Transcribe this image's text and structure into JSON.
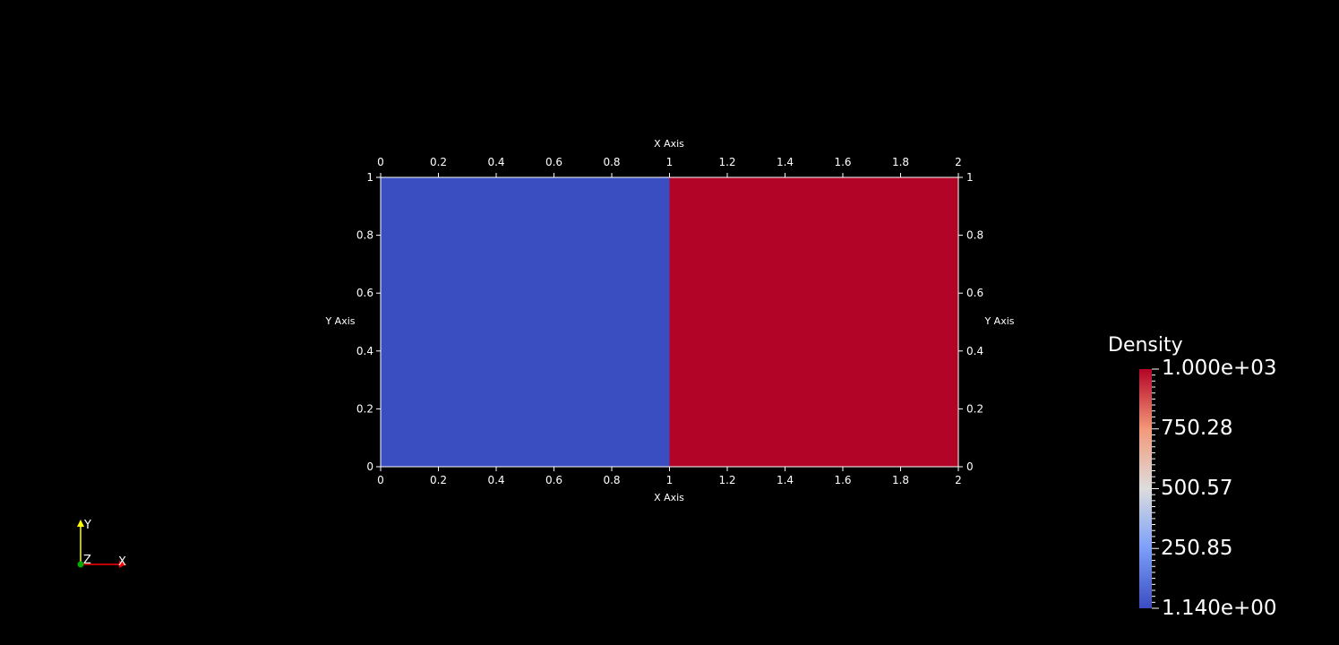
{
  "viewport": {
    "background": "#000000",
    "foreground": "#ffffff"
  },
  "plot": {
    "x_axis_title_top": "X Axis",
    "x_axis_title_bottom": "X Axis",
    "y_axis_title_left": "Y Axis",
    "y_axis_title_right": "Y Axis",
    "x_range": [
      0,
      2
    ],
    "y_range": [
      0,
      1
    ],
    "x_ticks": [
      "0",
      "0.2",
      "0.4",
      "0.6",
      "0.8",
      "1",
      "1.2",
      "1.4",
      "1.6",
      "1.8",
      "2"
    ],
    "y_ticks": [
      "0",
      "0.2",
      "0.4",
      "0.6",
      "0.8",
      "1"
    ],
    "regions": [
      {
        "x": [
          0,
          1
        ],
        "y": [
          0,
          1
        ],
        "color": "#3b4ec1"
      },
      {
        "x": [
          1,
          2
        ],
        "y": [
          0,
          1
        ],
        "color": "#b20426"
      }
    ]
  },
  "colorbar": {
    "title": "Density",
    "labels": [
      "1.000e+03",
      "750.28",
      "500.57",
      "250.85",
      "1.140e+00"
    ],
    "range": [
      1.14,
      1000
    ],
    "colormap": [
      "#3b4cc0",
      "#7b9ff9",
      "#dddddd",
      "#f39879",
      "#b40426"
    ]
  },
  "orientation_axes": {
    "x_label": "X",
    "y_label": "Y",
    "z_label": "Z",
    "x_color": "#ff0000",
    "y_color": "#ffff00",
    "z_color": "#00aa00"
  }
}
